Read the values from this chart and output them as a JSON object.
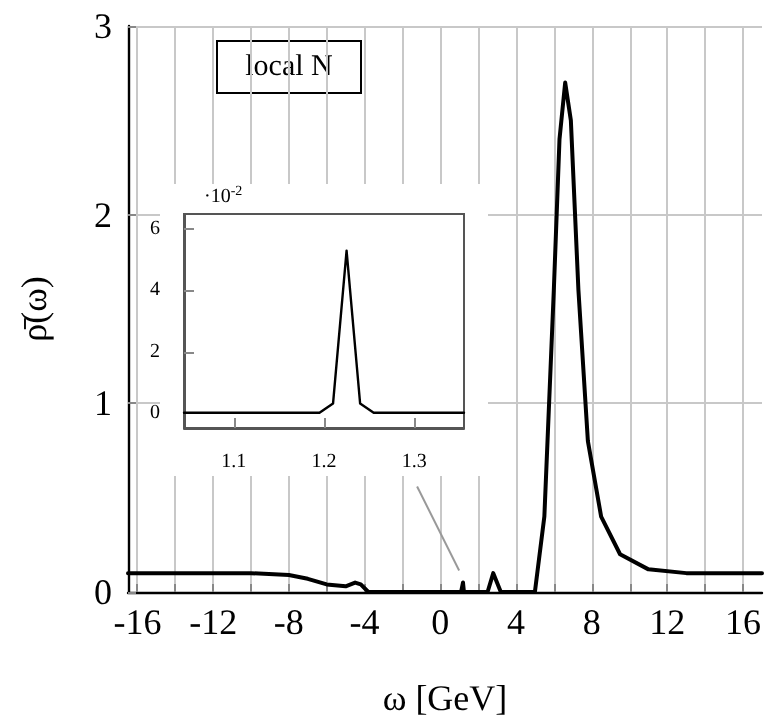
{
  "chart_data": [
    {
      "type": "line",
      "xlabel": "ω [GeV]",
      "ylabel": "ρ̄(ω)",
      "color": "#000000",
      "marker": "none",
      "line_style": "solid",
      "grid": true,
      "x": [
        -16.5,
        -12,
        -10,
        -8,
        -7,
        -6,
        -5,
        -4.5,
        -4.2,
        -3.8,
        1.1,
        1.15,
        1.2,
        1.25,
        1.3,
        2.5,
        2.8,
        3.2,
        5,
        5.5,
        6,
        6.3,
        6.6,
        6.9,
        7.3,
        7.8,
        8.5,
        9.5,
        11,
        13,
        17
      ],
      "values": [
        0.1,
        0.1,
        0.1,
        0.09,
        0.07,
        0.04,
        0.03,
        0.05,
        0.04,
        0,
        0,
        0,
        0.05,
        0,
        0,
        0,
        0.1,
        0,
        0,
        0.4,
        1.6,
        2.4,
        2.7,
        2.5,
        1.6,
        0.8,
        0.4,
        0.2,
        0.12,
        0.1,
        0.1
      ],
      "xlim": [
        -16.5,
        17
      ],
      "ylim": [
        0,
        3
      ],
      "xticks": [
        -16,
        {
          "value": -14,
          "label": null
        },
        -12,
        {
          "value": -10,
          "label": null
        },
        -8,
        {
          "value": -6,
          "label": null
        },
        -4,
        {
          "value": -2,
          "label": null
        },
        0,
        {
          "value": 2,
          "label": null
        },
        4,
        {
          "value": 6,
          "label": null
        },
        8,
        {
          "value": 10,
          "label": null
        },
        12,
        {
          "value": 14,
          "label": null
        },
        16
      ],
      "yticks": [
        0,
        1,
        2,
        3
      ],
      "annotations": [
        "local N"
      ]
    },
    {
      "type": "line",
      "color": "#000000",
      "marker": "none",
      "line_style": "solid",
      "grid": false,
      "x": [
        1.045,
        1.195,
        1.21,
        1.225,
        1.24,
        1.255,
        1.355
      ],
      "values": [
        0,
        0,
        0.3,
        5.3,
        0.3,
        0,
        0
      ],
      "xlim": [
        1.045,
        1.355
      ],
      "ylim": [
        -0.5,
        6.5
      ],
      "xticks": [
        1.1,
        1.2,
        1.3
      ],
      "yticks": [
        0,
        2,
        4,
        6
      ],
      "annotations": [
        "·10$^{-2}$"
      ]
    }
  ]
}
